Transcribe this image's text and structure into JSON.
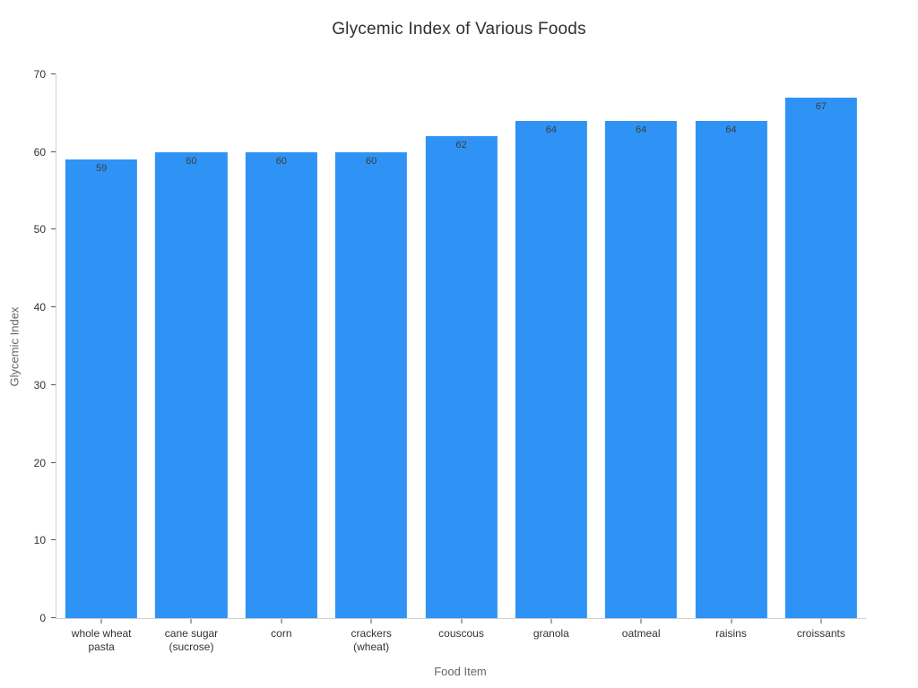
{
  "title": "Glycemic Index of Various Foods",
  "colors": {
    "bar": "#2E93F5",
    "spine": "#cfcfcf",
    "tick": "#555555",
    "tick_label": "#333333",
    "bar_label": "#3d3d3d",
    "axis_title": "#666666",
    "title": "#303030",
    "background": "#ffffff"
  },
  "chart_data": {
    "type": "bar",
    "title": "Glycemic Index of Various Foods",
    "xlabel": "Food Item",
    "ylabel": "Glycemic Index",
    "categories": [
      "whole wheat pasta",
      "cane sugar (sucrose)",
      "corn",
      "crackers (wheat)",
      "couscous",
      "granola",
      "oatmeal",
      "raisins",
      "croissants"
    ],
    "category_lines": [
      [
        "whole wheat",
        "pasta"
      ],
      [
        "cane sugar",
        "(sucrose)"
      ],
      [
        "corn"
      ],
      [
        "crackers",
        "(wheat)"
      ],
      [
        "couscous"
      ],
      [
        "granola"
      ],
      [
        "oatmeal"
      ],
      [
        "raisins"
      ],
      [
        "croissants"
      ]
    ],
    "values": [
      59,
      60,
      60,
      60,
      62,
      64,
      64,
      64,
      67
    ],
    "bar_labels": [
      59,
      60,
      60,
      60,
      62,
      64,
      64,
      64,
      67
    ],
    "ylim": [
      0,
      70
    ],
    "yticks": [
      0,
      10,
      20,
      30,
      40,
      50,
      60,
      70
    ],
    "grid": false,
    "legend": false,
    "bar_color": "#2E93F5"
  }
}
